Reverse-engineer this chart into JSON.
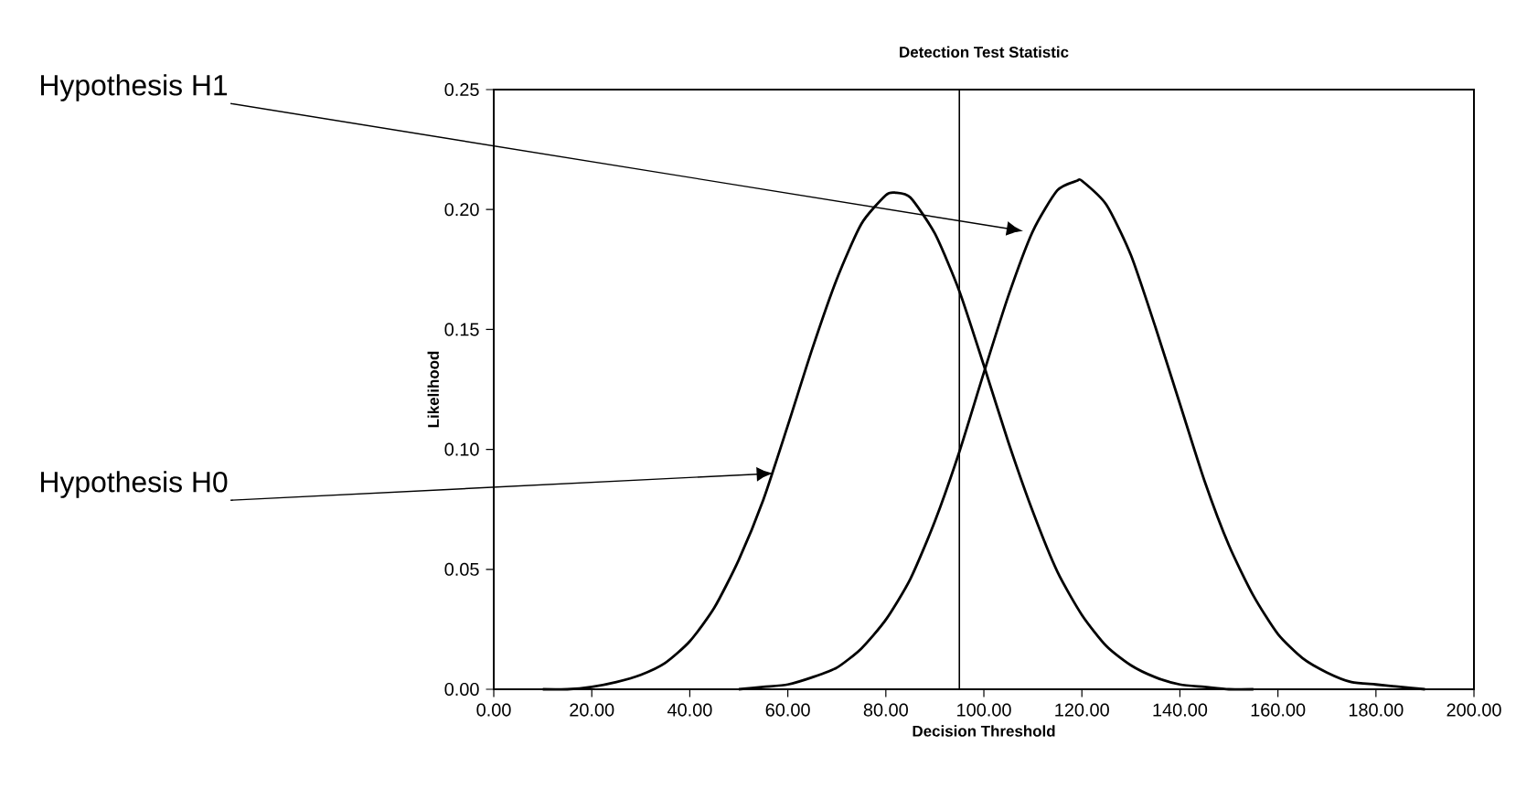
{
  "chart_data": {
    "type": "line",
    "title": "Detection Test Statistic",
    "xlabel": "Decision Threshold",
    "ylabel": "Likelihood",
    "series": [
      {
        "color": "#000000",
        "x": [
          10,
          15,
          20,
          25,
          30,
          35,
          40,
          45,
          50,
          55,
          60,
          65,
          70,
          75,
          80,
          82,
          85,
          90,
          95,
          100,
          105,
          110,
          115,
          120,
          125,
          130,
          135,
          140,
          145,
          150,
          155
        ],
        "values": [
          0.0,
          0.0,
          0.001,
          0.003,
          0.006,
          0.011,
          0.02,
          0.034,
          0.054,
          0.079,
          0.11,
          0.142,
          0.171,
          0.194,
          0.206,
          0.207,
          0.205,
          0.19,
          0.166,
          0.135,
          0.103,
          0.074,
          0.049,
          0.031,
          0.018,
          0.01,
          0.005,
          0.002,
          0.001,
          0.0,
          0.0
        ]
      },
      {
        "color": "#000000",
        "x": [
          50,
          55,
          60,
          65,
          70,
          75,
          80,
          85,
          90,
          95,
          100,
          105,
          110,
          115,
          119,
          120,
          125,
          130,
          135,
          140,
          145,
          150,
          155,
          160,
          165,
          170,
          175,
          180,
          185,
          190
        ],
        "values": [
          0.0,
          0.001,
          0.002,
          0.005,
          0.009,
          0.017,
          0.029,
          0.046,
          0.07,
          0.099,
          0.132,
          0.164,
          0.191,
          0.208,
          0.212,
          0.212,
          0.202,
          0.181,
          0.151,
          0.119,
          0.087,
          0.06,
          0.039,
          0.023,
          0.013,
          0.007,
          0.003,
          0.002,
          0.001,
          0.0
        ]
      }
    ],
    "xlim": [
      0,
      200
    ],
    "ylim": [
      0,
      0.25
    ],
    "xticks": [
      {
        "value": 0,
        "label": "0.00"
      },
      {
        "value": 20,
        "label": "20.00"
      },
      {
        "value": 40,
        "label": "40.00"
      },
      {
        "value": 60,
        "label": "60.00"
      },
      {
        "value": 80,
        "label": "80.00"
      },
      {
        "value": 100,
        "label": "100.00"
      },
      {
        "value": 120,
        "label": "120.00"
      },
      {
        "value": 140,
        "label": "140.00"
      },
      {
        "value": 160,
        "label": "160.00"
      },
      {
        "value": 180,
        "label": "180.00"
      },
      {
        "value": 200,
        "label": "200.00"
      }
    ],
    "yticks": [
      {
        "value": 0,
        "label": "0.00"
      },
      {
        "value": 0.05,
        "label": "0.05"
      },
      {
        "value": 0.1,
        "label": "0.10"
      },
      {
        "value": 0.15,
        "label": "0.15"
      },
      {
        "value": 0.2,
        "label": "0.20"
      },
      {
        "value": 0.25,
        "label": "0.25"
      }
    ],
    "ref_lines": [
      {
        "axis": "x",
        "value": 95,
        "color": "#000000"
      }
    ],
    "annotations": [
      {
        "text": "Hypothesis H1",
        "x": 108,
        "y": 0.191
      },
      {
        "text": "Hypothesis H0",
        "x": 57,
        "y": 0.09
      }
    ],
    "grid": false,
    "marker": "none",
    "line_style": "solid"
  }
}
